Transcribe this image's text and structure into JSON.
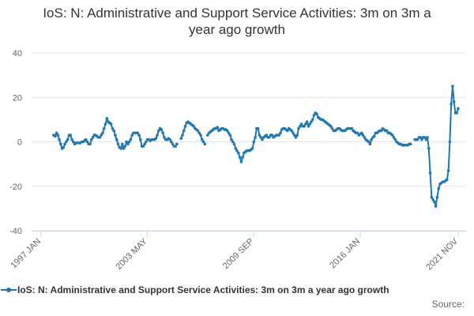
{
  "chart_data": {
    "type": "line",
    "title": "IoS: N: Administrative and Support Service Activities: 3m on 3m a year ago growth",
    "source": "Source:",
    "legend": "bottom",
    "grid": true,
    "ylim": [
      -40,
      40
    ],
    "yticks": [
      -40,
      -20,
      0,
      20,
      40
    ],
    "categories": [
      "1997 JAN",
      null,
      null,
      null,
      null,
      null,
      null,
      null,
      null,
      null,
      null,
      null,
      null,
      null,
      null,
      null,
      null,
      null,
      null,
      null,
      null,
      null,
      null,
      null,
      null,
      null,
      null,
      null,
      null,
      null,
      null,
      null,
      null,
      null,
      null,
      null,
      null,
      null,
      null,
      null,
      null,
      null,
      null,
      null,
      null,
      null,
      null,
      null,
      null,
      null,
      null,
      null,
      null,
      null,
      null,
      null,
      null,
      null,
      null,
      null,
      null,
      null,
      null,
      null,
      null,
      null,
      null,
      null,
      null,
      null,
      null,
      null,
      null,
      null,
      null,
      null,
      "2003 MAY",
      null,
      null,
      null,
      null,
      null,
      null,
      null,
      null,
      null,
      null,
      null,
      null,
      null,
      null,
      null,
      null,
      null,
      null,
      null,
      null,
      null,
      null,
      null,
      null,
      null,
      null,
      null,
      null,
      null,
      null,
      null,
      null,
      null,
      null,
      null,
      null,
      null,
      null,
      null,
      null,
      null,
      null,
      null,
      null,
      null,
      null,
      null,
      null,
      null,
      null,
      null,
      null,
      null,
      null,
      null,
      null,
      null,
      null,
      null,
      null,
      null,
      null,
      null,
      null,
      null,
      null,
      null,
      null,
      null,
      null,
      null,
      null,
      null,
      null,
      null,
      "2009 SEP",
      null,
      null,
      null,
      null,
      null,
      null,
      null,
      null,
      null,
      null,
      null,
      null,
      null,
      null,
      null,
      null,
      null,
      null,
      null,
      null,
      null,
      null,
      null,
      null,
      null,
      null,
      null,
      null,
      null,
      null,
      null,
      null,
      null,
      null,
      null,
      null,
      null,
      null,
      null,
      null,
      null,
      null,
      null,
      null,
      null,
      null,
      null,
      null,
      null,
      null,
      null,
      null,
      null,
      null,
      null,
      null,
      null,
      null,
      null,
      null,
      null,
      null,
      null,
      null,
      null,
      null,
      null,
      null,
      null,
      null,
      null,
      null,
      null,
      null,
      null,
      "2016 JAN",
      null,
      null,
      null,
      null,
      null,
      null,
      null,
      null,
      null,
      null,
      null,
      null,
      null,
      null,
      null,
      null,
      null,
      null,
      null,
      null,
      null,
      null,
      null,
      null,
      null,
      null,
      null,
      null,
      null,
      null,
      null,
      null,
      null,
      null,
      null,
      null,
      null,
      null,
      null,
      null,
      null,
      null,
      null,
      null,
      null,
      null,
      null,
      null,
      null,
      null,
      null,
      null,
      null,
      null,
      null,
      null,
      null,
      null,
      null,
      null,
      null,
      null,
      null,
      null,
      null,
      null,
      null,
      null,
      null,
      "2021 NOV"
    ],
    "series": [
      {
        "name": "IoS: N: Administrative and Support Service Activities: 3m on 3m a year ago growth",
        "color": "#1f78b4",
        "values": [
          null,
          null,
          null,
          null,
          null,
          null,
          null,
          null,
          null,
          3,
          2.5,
          4,
          3,
          1,
          -1,
          -3,
          -2.5,
          -1,
          0,
          1,
          3,
          3,
          1,
          0,
          -1,
          -0.5,
          -0.5,
          -0.5,
          -0.5,
          0,
          0,
          0.5,
          1,
          0,
          -1,
          -1,
          1,
          2,
          3,
          3,
          2.5,
          2,
          2,
          3,
          4,
          6,
          8,
          10.5,
          9,
          8.5,
          8,
          6,
          5,
          3,
          1,
          -1,
          -2.5,
          -3,
          -1,
          -3,
          -2,
          0,
          -1,
          0,
          1,
          3,
          4,
          4,
          4,
          4,
          3,
          1,
          -2,
          -2,
          -1,
          0,
          1,
          1,
          0.5,
          1,
          1,
          1,
          1.5,
          3,
          5,
          6,
          5.5,
          4,
          2,
          1,
          1,
          1.5,
          1,
          0,
          -1,
          -2,
          -2,
          -1,
          null,
          null,
          1.5,
          3,
          5,
          7,
          8.5,
          9,
          8.5,
          8,
          7.5,
          7,
          6,
          5.5,
          5,
          4,
          3,
          1,
          0,
          -1,
          null,
          3,
          4,
          4.5,
          5,
          5.5,
          6,
          6,
          6.5,
          5,
          5.5,
          6,
          6,
          5.5,
          5.5,
          5,
          4,
          3,
          1,
          0,
          -1,
          -3,
          -4,
          -5,
          -7,
          -9,
          -7,
          -5,
          -4.5,
          -4,
          -4,
          -4,
          -3.5,
          -3,
          0,
          2,
          6,
          6,
          3,
          2,
          1,
          2,
          2.5,
          3,
          2,
          2,
          3,
          3,
          2,
          2.5,
          3,
          3,
          3,
          4,
          5.5,
          6,
          6,
          5.5,
          5,
          6,
          5.5,
          5,
          4,
          3,
          2,
          3,
          6,
          7,
          8,
          7,
          7,
          8,
          9,
          7,
          8,
          9,
          10,
          12,
          13,
          12.5,
          11,
          10.5,
          10,
          10,
          9.5,
          9,
          8.5,
          8,
          7.5,
          7,
          6,
          5,
          5,
          5.5,
          6,
          6,
          5.5,
          5,
          5,
          5,
          5.5,
          6,
          6,
          6,
          6,
          5,
          4.5,
          4,
          4,
          3,
          3.5,
          4,
          3,
          2,
          1,
          0.5,
          0,
          -1,
          1,
          2,
          2.5,
          4,
          4,
          4.5,
          5,
          5,
          6,
          5.5,
          5,
          5,
          4,
          4,
          3.5,
          3,
          2,
          1,
          0,
          -0.5,
          -1,
          -1,
          -1.5,
          -1.5,
          -1.5,
          -1.5,
          -1.5,
          -1,
          -1,
          null,
          null,
          1,
          1,
          1,
          2,
          2,
          1,
          2,
          2,
          1,
          2,
          -3,
          -14,
          -25,
          -26,
          -27,
          -29,
          -25,
          -21,
          -19,
          -18.5,
          -18,
          -18,
          -17.5,
          -17,
          -13,
          0,
          17,
          25,
          18,
          13,
          13,
          15
        ]
      }
    ]
  }
}
